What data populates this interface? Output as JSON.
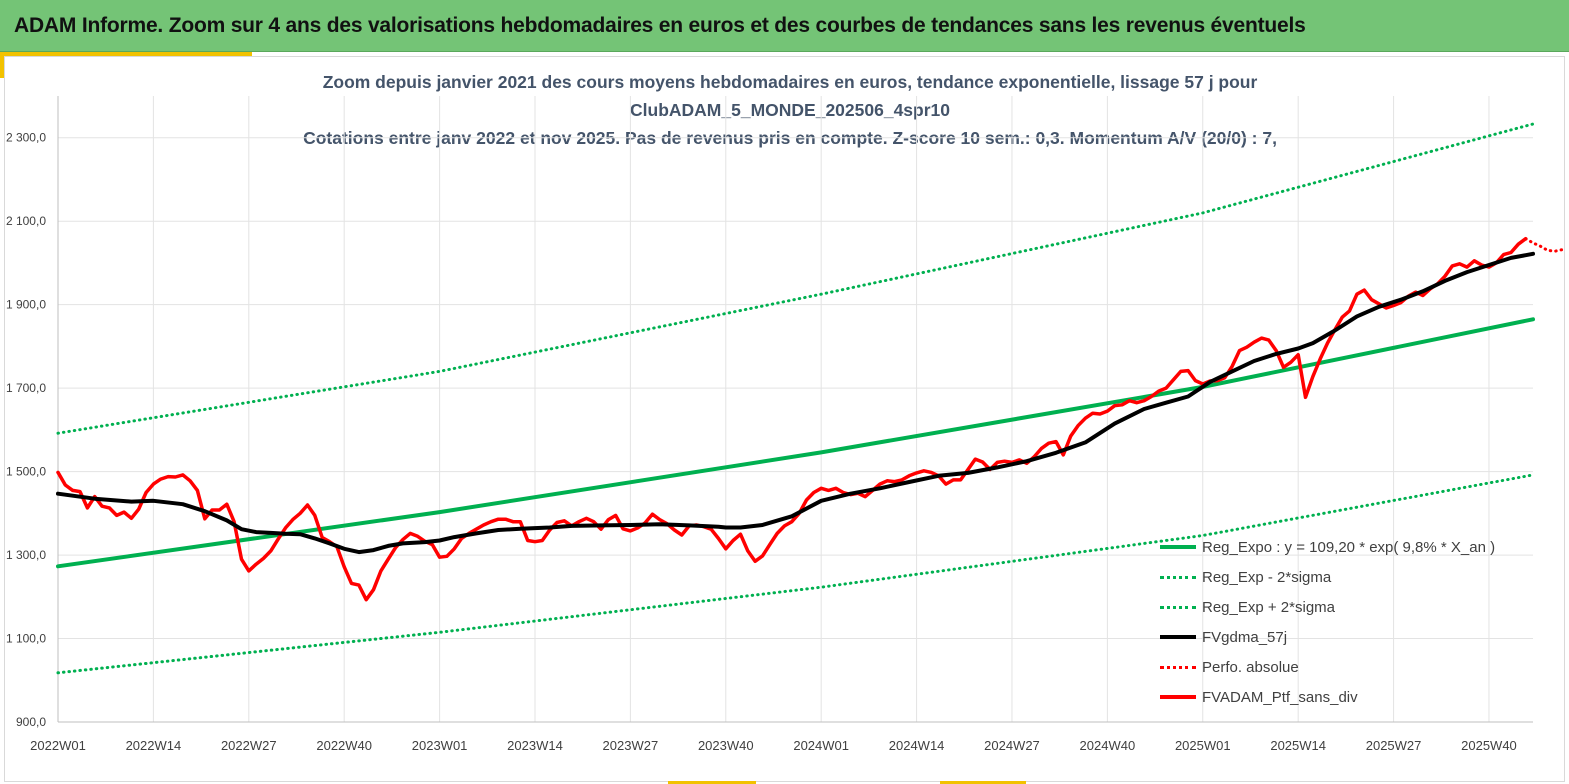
{
  "banner": {
    "title": "ADAM Informe. Zoom sur 4 ans des valorisations hebdomadaires en euros et des courbes de tendances sans les revenus éventuels"
  },
  "chart_data": {
    "type": "line",
    "title_lines": [
      "Zoom depuis janvier 2021 des cours moyens hebdomadaires  en euros, tendance exponentielle, lissage 57 j pour",
      "ClubADAM_5_MONDE_202506_4spr10",
      "Cotations entre janv 2022 et nov 2025. Pas de revenus pris en compte. Z-score 10 sem.: 0,3. Momentum A/V (20/0) : 7,"
    ],
    "xlabel": "",
    "ylabel": "",
    "ylim": [
      900,
      2400
    ],
    "y_ticks": [
      "900,0",
      "1 100,0",
      "1 300,0",
      "1 500,0",
      "1 700,0",
      "1 900,0",
      "2 100,0",
      "2 300,0"
    ],
    "y_tick_values": [
      900,
      1100,
      1300,
      1500,
      1700,
      1900,
      2100,
      2300
    ],
    "x_range_weeks": [
      0,
      201
    ],
    "x_ticks": [
      "2022W01",
      "2022W14",
      "2022W27",
      "2022W40",
      "2023W01",
      "2023W14",
      "2023W27",
      "2023W40",
      "2024W01",
      "2024W14",
      "2024W27",
      "2024W40",
      "2025W01",
      "2025W14",
      "2025W27",
      "2025W40"
    ],
    "x_tick_weeks": [
      0,
      13,
      26,
      39,
      52,
      65,
      78,
      91,
      104,
      117,
      130,
      143,
      156,
      169,
      182,
      195
    ],
    "grid": true,
    "legend_position": "bottom-right",
    "legend": [
      {
        "label": "Reg_Expo : y = 109,20 * exp( 9,8% *  X_an )",
        "style": "solid-green"
      },
      {
        "label": "Reg_Exp - 2*sigma",
        "style": "dotted-green"
      },
      {
        "label": "Reg_Exp + 2*sigma",
        "style": "dotted-green"
      },
      {
        "label": "FVgdma_57j",
        "style": "solid-black"
      },
      {
        "label": "Perfo. absolue",
        "style": "dotted-red"
      },
      {
        "label": "FVADAM_Ptf_sans_div",
        "style": "solid-red"
      }
    ],
    "series": [
      {
        "name": "Reg_Expo",
        "color": "#00b050",
        "style": "solid",
        "points": [
          [
            0,
            1273
          ],
          [
            52,
            1403
          ],
          [
            104,
            1546
          ],
          [
            156,
            1703
          ],
          [
            201,
            1865
          ]
        ]
      },
      {
        "name": "Reg_Exp - 2*sigma",
        "color": "#00b050",
        "style": "dotted",
        "points": [
          [
            0,
            1018
          ],
          [
            52,
            1115
          ],
          [
            104,
            1223
          ],
          [
            156,
            1347
          ],
          [
            201,
            1492
          ]
        ]
      },
      {
        "name": "Reg_Exp + 2*sigma",
        "color": "#00b050",
        "style": "dotted",
        "points": [
          [
            0,
            1592
          ],
          [
            52,
            1740
          ],
          [
            104,
            1925
          ],
          [
            156,
            2120
          ],
          [
            201,
            2333
          ]
        ]
      },
      {
        "name": "FVgdma_57j",
        "color": "#000000",
        "style": "solid",
        "points": [
          [
            0,
            1447
          ],
          [
            5,
            1435
          ],
          [
            10,
            1428
          ],
          [
            13,
            1430
          ],
          [
            17,
            1422
          ],
          [
            20,
            1405
          ],
          [
            23,
            1383
          ],
          [
            25,
            1362
          ],
          [
            27,
            1355
          ],
          [
            29,
            1353
          ],
          [
            31,
            1351
          ],
          [
            33,
            1350
          ],
          [
            35,
            1340
          ],
          [
            37,
            1328
          ],
          [
            39,
            1315
          ],
          [
            41,
            1307
          ],
          [
            43,
            1312
          ],
          [
            45,
            1322
          ],
          [
            47,
            1328
          ],
          [
            50,
            1331
          ],
          [
            52,
            1335
          ],
          [
            54,
            1343
          ],
          [
            57,
            1352
          ],
          [
            60,
            1360
          ],
          [
            63,
            1363
          ],
          [
            67,
            1366
          ],
          [
            70,
            1370
          ],
          [
            74,
            1371
          ],
          [
            78,
            1372
          ],
          [
            82,
            1374
          ],
          [
            86,
            1371
          ],
          [
            90,
            1368
          ],
          [
            91,
            1366
          ],
          [
            93,
            1366
          ],
          [
            96,
            1372
          ],
          [
            100,
            1393
          ],
          [
            104,
            1430
          ],
          [
            108,
            1447
          ],
          [
            112,
            1460
          ],
          [
            116,
            1475
          ],
          [
            120,
            1490
          ],
          [
            124,
            1497
          ],
          [
            128,
            1510
          ],
          [
            132,
            1525
          ],
          [
            136,
            1545
          ],
          [
            140,
            1570
          ],
          [
            144,
            1615
          ],
          [
            148,
            1650
          ],
          [
            151,
            1665
          ],
          [
            154,
            1680
          ],
          [
            157,
            1715
          ],
          [
            160,
            1740
          ],
          [
            163,
            1765
          ],
          [
            166,
            1782
          ],
          [
            169,
            1795
          ],
          [
            171,
            1808
          ],
          [
            174,
            1838
          ],
          [
            177,
            1872
          ],
          [
            180,
            1895
          ],
          [
            183,
            1912
          ],
          [
            186,
            1932
          ],
          [
            189,
            1957
          ],
          [
            192,
            1978
          ],
          [
            195,
            1995
          ],
          [
            198,
            2012
          ],
          [
            201,
            2022
          ]
        ]
      },
      {
        "name": "FVADAM_Ptf_sans_div",
        "color": "#ff0000",
        "style": "solid",
        "points": [
          [
            0,
            1498
          ],
          [
            1,
            1468
          ],
          [
            2,
            1455
          ],
          [
            3,
            1452
          ],
          [
            4,
            1413
          ],
          [
            5,
            1440
          ],
          [
            6,
            1417
          ],
          [
            7,
            1413
          ],
          [
            8,
            1395
          ],
          [
            9,
            1403
          ],
          [
            10,
            1388
          ],
          [
            11,
            1410
          ],
          [
            12,
            1450
          ],
          [
            13,
            1470
          ],
          [
            14,
            1482
          ],
          [
            15,
            1488
          ],
          [
            16,
            1487
          ],
          [
            17,
            1492
          ],
          [
            18,
            1478
          ],
          [
            19,
            1455
          ],
          [
            20,
            1387
          ],
          [
            21,
            1408
          ],
          [
            22,
            1408
          ],
          [
            23,
            1422
          ],
          [
            24,
            1380
          ],
          [
            25,
            1290
          ],
          [
            26,
            1262
          ],
          [
            27,
            1278
          ],
          [
            28,
            1292
          ],
          [
            29,
            1310
          ],
          [
            30,
            1338
          ],
          [
            31,
            1365
          ],
          [
            32,
            1385
          ],
          [
            33,
            1400
          ],
          [
            34,
            1420
          ],
          [
            35,
            1395
          ],
          [
            36,
            1342
          ],
          [
            37,
            1332
          ],
          [
            38,
            1320
          ],
          [
            39,
            1272
          ],
          [
            40,
            1232
          ],
          [
            41,
            1228
          ],
          [
            42,
            1193
          ],
          [
            43,
            1217
          ],
          [
            44,
            1262
          ],
          [
            45,
            1290
          ],
          [
            46,
            1318
          ],
          [
            47,
            1337
          ],
          [
            48,
            1352
          ],
          [
            49,
            1345
          ],
          [
            50,
            1333
          ],
          [
            51,
            1325
          ],
          [
            52,
            1295
          ],
          [
            53,
            1297
          ],
          [
            54,
            1315
          ],
          [
            55,
            1340
          ],
          [
            56,
            1352
          ],
          [
            57,
            1362
          ],
          [
            58,
            1372
          ],
          [
            59,
            1380
          ],
          [
            60,
            1386
          ],
          [
            61,
            1386
          ],
          [
            62,
            1380
          ],
          [
            63,
            1380
          ],
          [
            64,
            1335
          ],
          [
            65,
            1332
          ],
          [
            66,
            1335
          ],
          [
            67,
            1360
          ],
          [
            68,
            1378
          ],
          [
            69,
            1382
          ],
          [
            70,
            1370
          ],
          [
            71,
            1380
          ],
          [
            72,
            1388
          ],
          [
            73,
            1380
          ],
          [
            74,
            1362
          ],
          [
            75,
            1385
          ],
          [
            76,
            1395
          ],
          [
            77,
            1363
          ],
          [
            78,
            1358
          ],
          [
            79,
            1365
          ],
          [
            80,
            1377
          ],
          [
            81,
            1398
          ],
          [
            82,
            1385
          ],
          [
            83,
            1375
          ],
          [
            84,
            1360
          ],
          [
            85,
            1348
          ],
          [
            86,
            1370
          ],
          [
            87,
            1372
          ],
          [
            88,
            1368
          ],
          [
            89,
            1362
          ],
          [
            90,
            1340
          ],
          [
            91,
            1315
          ],
          [
            92,
            1335
          ],
          [
            93,
            1350
          ],
          [
            94,
            1310
          ],
          [
            95,
            1285
          ],
          [
            96,
            1298
          ],
          [
            97,
            1325
          ],
          [
            98,
            1352
          ],
          [
            99,
            1370
          ],
          [
            100,
            1380
          ],
          [
            101,
            1400
          ],
          [
            102,
            1432
          ],
          [
            103,
            1450
          ],
          [
            104,
            1460
          ],
          [
            105,
            1455
          ],
          [
            106,
            1460
          ],
          [
            107,
            1450
          ],
          [
            108,
            1445
          ],
          [
            109,
            1448
          ],
          [
            110,
            1440
          ],
          [
            111,
            1455
          ],
          [
            112,
            1470
          ],
          [
            113,
            1478
          ],
          [
            114,
            1476
          ],
          [
            115,
            1480
          ],
          [
            116,
            1490
          ],
          [
            117,
            1497
          ],
          [
            118,
            1502
          ],
          [
            119,
            1498
          ],
          [
            120,
            1490
          ],
          [
            121,
            1470
          ],
          [
            122,
            1480
          ],
          [
            123,
            1480
          ],
          [
            124,
            1505
          ],
          [
            125,
            1530
          ],
          [
            126,
            1523
          ],
          [
            127,
            1505
          ],
          [
            128,
            1522
          ],
          [
            129,
            1525
          ],
          [
            130,
            1522
          ],
          [
            131,
            1528
          ],
          [
            132,
            1520
          ],
          [
            133,
            1535
          ],
          [
            134,
            1555
          ],
          [
            135,
            1568
          ],
          [
            136,
            1572
          ],
          [
            137,
            1540
          ],
          [
            138,
            1585
          ],
          [
            139,
            1610
          ],
          [
            140,
            1628
          ],
          [
            141,
            1640
          ],
          [
            142,
            1638
          ],
          [
            143,
            1645
          ],
          [
            144,
            1658
          ],
          [
            145,
            1660
          ],
          [
            146,
            1670
          ],
          [
            147,
            1665
          ],
          [
            148,
            1670
          ],
          [
            149,
            1680
          ],
          [
            150,
            1693
          ],
          [
            151,
            1700
          ],
          [
            152,
            1720
          ],
          [
            153,
            1740
          ],
          [
            154,
            1742
          ],
          [
            155,
            1718
          ],
          [
            156,
            1710
          ],
          [
            157,
            1717
          ],
          [
            158,
            1718
          ],
          [
            159,
            1725
          ],
          [
            160,
            1752
          ],
          [
            161,
            1790
          ],
          [
            162,
            1798
          ],
          [
            163,
            1810
          ],
          [
            164,
            1820
          ],
          [
            165,
            1815
          ],
          [
            166,
            1790
          ],
          [
            167,
            1750
          ],
          [
            168,
            1762
          ],
          [
            169,
            1780
          ],
          [
            170,
            1678
          ],
          [
            171,
            1728
          ],
          [
            172,
            1770
          ],
          [
            173,
            1808
          ],
          [
            174,
            1840
          ],
          [
            175,
            1870
          ],
          [
            176,
            1885
          ],
          [
            177,
            1925
          ],
          [
            178,
            1935
          ],
          [
            179,
            1912
          ],
          [
            180,
            1902
          ],
          [
            181,
            1892
          ],
          [
            182,
            1898
          ],
          [
            183,
            1905
          ],
          [
            184,
            1920
          ],
          [
            185,
            1930
          ],
          [
            186,
            1922
          ],
          [
            187,
            1938
          ],
          [
            188,
            1950
          ],
          [
            189,
            1968
          ],
          [
            190,
            1993
          ],
          [
            191,
            1998
          ],
          [
            192,
            1990
          ],
          [
            193,
            2005
          ],
          [
            194,
            1995
          ],
          [
            195,
            1990
          ],
          [
            196,
            2000
          ],
          [
            197,
            2020
          ],
          [
            198,
            2025
          ],
          [
            199,
            2045
          ],
          [
            200,
            2058
          ]
        ]
      },
      {
        "name": "Perfo. absolue",
        "color": "#ff0000",
        "style": "dotted",
        "points": [
          [
            200,
            2058
          ],
          [
            201,
            2048
          ],
          [
            202,
            2040
          ],
          [
            203,
            2030
          ],
          [
            204,
            2028
          ],
          [
            205,
            2032
          ]
        ]
      }
    ]
  }
}
